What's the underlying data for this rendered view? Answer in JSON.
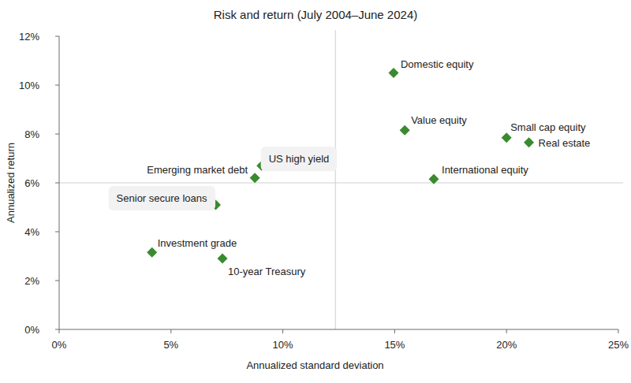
{
  "chart_data": {
    "type": "scatter",
    "title": "Risk and return (July 2004–June 2024)",
    "x_label": "Annualized standard deviation",
    "y_label": "Annualized return",
    "color": "#3a8a2f",
    "marker": "diamond",
    "grid": false,
    "xlim": [
      0,
      25
    ],
    "xticks": [
      {
        "value": 0,
        "label": "0%"
      },
      {
        "value": 5,
        "label": "5%"
      },
      {
        "value": 10,
        "label": "10%"
      },
      {
        "value": 15,
        "label": "15%"
      },
      {
        "value": 20,
        "label": "20%"
      },
      {
        "value": 25,
        "label": "25%"
      }
    ],
    "ylim": [
      0,
      12
    ],
    "yticks": [
      {
        "value": 0,
        "label": "0%"
      },
      {
        "value": 2,
        "label": "2%"
      },
      {
        "value": 4,
        "label": "4%"
      },
      {
        "value": 6,
        "label": "6%"
      },
      {
        "value": 8,
        "label": "8%"
      },
      {
        "value": 10,
        "label": "10%"
      },
      {
        "value": 12,
        "label": "12%"
      }
    ],
    "reference_lines": {
      "x": 12.35,
      "y": 6.0
    },
    "labels": [
      "Domestic equity",
      "Value equity",
      "Small cap equity",
      "Real estate",
      "International equity",
      "US high yield",
      "Emerging market debt",
      "Senior secure loans",
      "Investment grade",
      "10-year Treasury"
    ],
    "x": [
      14.95,
      15.45,
      20.0,
      21.0,
      16.75,
      9.05,
      8.75,
      7.0,
      4.15,
      7.3
    ],
    "values": [
      10.5,
      8.15,
      7.85,
      7.65,
      6.15,
      6.7,
      6.2,
      5.1,
      3.15,
      2.9
    ]
  }
}
